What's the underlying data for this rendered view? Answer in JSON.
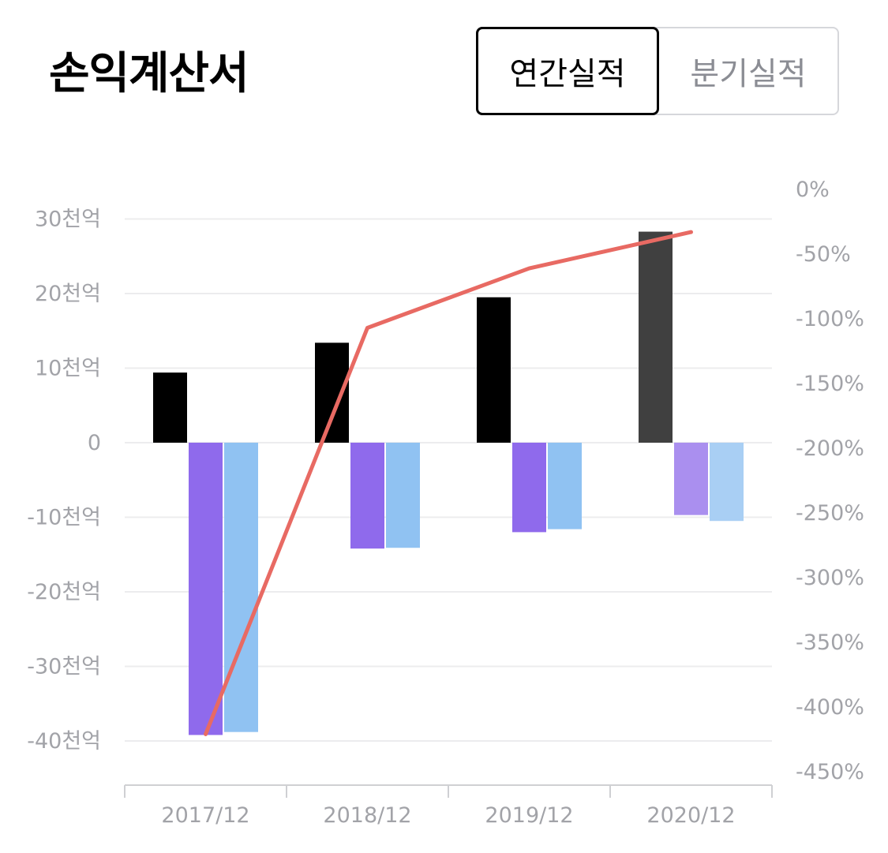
{
  "header": {
    "title": "손익계산서",
    "tabs": [
      {
        "label": "연간실적",
        "active": true
      },
      {
        "label": "분기실적",
        "active": false
      }
    ]
  },
  "chart_data": {
    "type": "bar",
    "categories": [
      "2017/12",
      "2018/12",
      "2019/12",
      "2020/12"
    ],
    "y_ticks": [
      "30천억",
      "20천억",
      "10천억",
      "0",
      "-10천억",
      "-20천억",
      "-30천억",
      "-40천억"
    ],
    "y_tick_values": [
      30,
      20,
      10,
      0,
      -10,
      -20,
      -30,
      -40
    ],
    "y2_ticks": [
      "0%",
      "-50%",
      "-100%",
      "-150%",
      "-200%",
      "-250%",
      "-300%",
      "-350%",
      "-400%",
      "-450%"
    ],
    "y2_tick_values": [
      0,
      -50,
      -100,
      -150,
      -200,
      -250,
      -300,
      -350,
      -400,
      -450
    ],
    "ylim": [
      -44,
      34
    ],
    "y2lim": [
      -450,
      0
    ],
    "grid": true,
    "series": [
      {
        "type": "bar",
        "color": "#000000",
        "last_color": "#404040",
        "values": [
          9.4,
          13.4,
          19.5,
          28.3
        ]
      },
      {
        "type": "bar",
        "color": "#8f6aec",
        "last_color": "#aa8fef",
        "values": [
          -39.2,
          -14.2,
          -12.0,
          -9.7
        ]
      },
      {
        "type": "bar",
        "color": "#90c2f2",
        "last_color": "#a9cff4",
        "values": [
          -38.8,
          -14.1,
          -11.6,
          -10.5
        ]
      },
      {
        "type": "line",
        "axis": "right",
        "color": "#e86a63",
        "values": [
          -421,
          -107,
          -61,
          -33
        ]
      }
    ]
  }
}
